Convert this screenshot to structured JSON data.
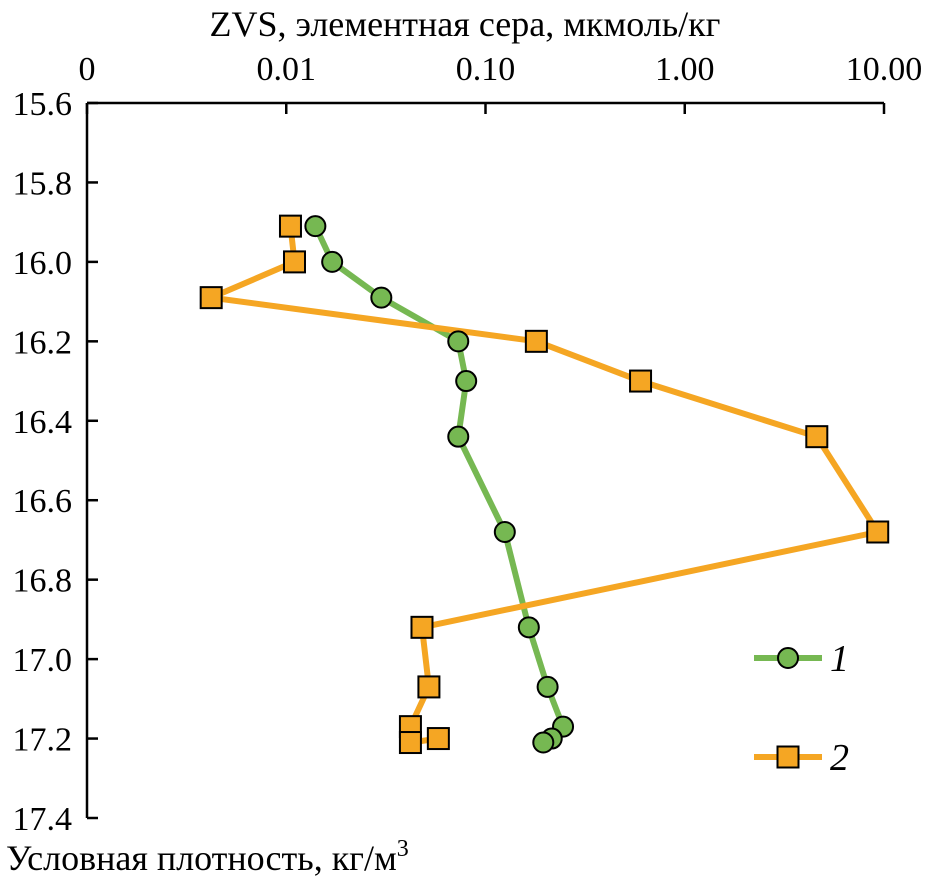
{
  "chart_data": {
    "type": "line",
    "x_axis": {
      "label": "ZVS, элементная сера, мкмоль/кг",
      "scale": "log",
      "position": "top",
      "tick_values": [
        0.001,
        0.01,
        0.1,
        1,
        10
      ],
      "tick_labels": [
        "0",
        "0.01",
        "0.10",
        "1.00",
        "10.00"
      ],
      "range": [
        0.001,
        10
      ]
    },
    "y_axis": {
      "label": "Условная плотность, кг/м",
      "label_superscript": "3",
      "inverted": true,
      "range": [
        15.6,
        17.4
      ],
      "ticks": [
        15.6,
        15.8,
        16.0,
        16.2,
        16.4,
        16.6,
        16.8,
        17.0,
        17.2,
        17.4
      ],
      "tick_labels": [
        "15.6",
        "15.8",
        "16.0",
        "16.2",
        "16.4",
        "16.6",
        "16.8",
        "17.0",
        "17.2",
        "17.4"
      ]
    },
    "series": [
      {
        "name": "1",
        "color": "#76b852",
        "marker": "circle",
        "points": [
          {
            "x": 0.014,
            "y": 15.91
          },
          {
            "x": 0.017,
            "y": 16.0
          },
          {
            "x": 0.03,
            "y": 16.09
          },
          {
            "x": 0.073,
            "y": 16.2
          },
          {
            "x": 0.08,
            "y": 16.3
          },
          {
            "x": 0.073,
            "y": 16.44
          },
          {
            "x": 0.125,
            "y": 16.68
          },
          {
            "x": 0.165,
            "y": 16.92
          },
          {
            "x": 0.205,
            "y": 17.07
          },
          {
            "x": 0.245,
            "y": 17.17
          },
          {
            "x": 0.215,
            "y": 17.2
          },
          {
            "x": 0.195,
            "y": 17.21
          }
        ]
      },
      {
        "name": "2",
        "color": "#f5a623",
        "marker": "square",
        "points": [
          {
            "x": 0.0105,
            "y": 15.91
          },
          {
            "x": 0.011,
            "y": 16.0
          },
          {
            "x": 0.0042,
            "y": 16.09
          },
          {
            "x": 0.18,
            "y": 16.2
          },
          {
            "x": 0.6,
            "y": 16.3
          },
          {
            "x": 4.6,
            "y": 16.44
          },
          {
            "x": 9.3,
            "y": 16.68
          },
          {
            "x": 0.048,
            "y": 16.92
          },
          {
            "x": 0.052,
            "y": 17.07
          },
          {
            "x": 0.042,
            "y": 17.17
          },
          {
            "x": 0.042,
            "y": 17.21
          },
          {
            "x": 0.058,
            "y": 17.2
          }
        ]
      }
    ],
    "legend": {
      "placement": "lower-right",
      "entries": [
        "1",
        "2"
      ]
    },
    "grid": false
  }
}
